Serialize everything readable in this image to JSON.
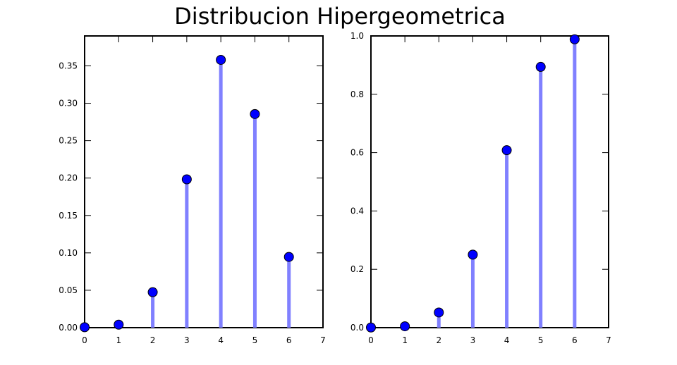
{
  "title": "Distribucion Hipergeometrica",
  "chart_data": [
    {
      "type": "stem",
      "x": [
        0,
        1,
        2,
        3,
        4,
        5,
        6
      ],
      "values": [
        0.0006,
        0.004,
        0.0474,
        0.1983,
        0.358,
        0.2856,
        0.0946
      ],
      "xlim": [
        0,
        7
      ],
      "ylim": [
        0,
        0.39
      ],
      "xticks": [
        0,
        1,
        2,
        3,
        4,
        5,
        6,
        7
      ],
      "yticks": [
        0.0,
        0.05,
        0.1,
        0.15,
        0.2,
        0.25,
        0.3,
        0.35
      ],
      "ytick_labels": [
        "0.00",
        "0.05",
        "0.10",
        "0.15",
        "0.20",
        "0.25",
        "0.30",
        "0.35"
      ],
      "grid": false,
      "stem_color": "#8080ff",
      "marker_color": "#0000ff"
    },
    {
      "type": "stem",
      "x": [
        0,
        1,
        2,
        3,
        4,
        5,
        6
      ],
      "values": [
        0.0006,
        0.0046,
        0.052,
        0.2503,
        0.6083,
        0.8939,
        0.9885
      ],
      "xlim": [
        0,
        7
      ],
      "ylim": [
        0,
        1.0
      ],
      "xticks": [
        0,
        1,
        2,
        3,
        4,
        5,
        6,
        7
      ],
      "yticks": [
        0.0,
        0.2,
        0.4,
        0.6,
        0.8,
        1.0
      ],
      "ytick_labels": [
        "0.0",
        "0.2",
        "0.4",
        "0.6",
        "0.8",
        "1.0"
      ],
      "grid": false,
      "stem_color": "#8080ff",
      "marker_color": "#0000ff"
    }
  ]
}
